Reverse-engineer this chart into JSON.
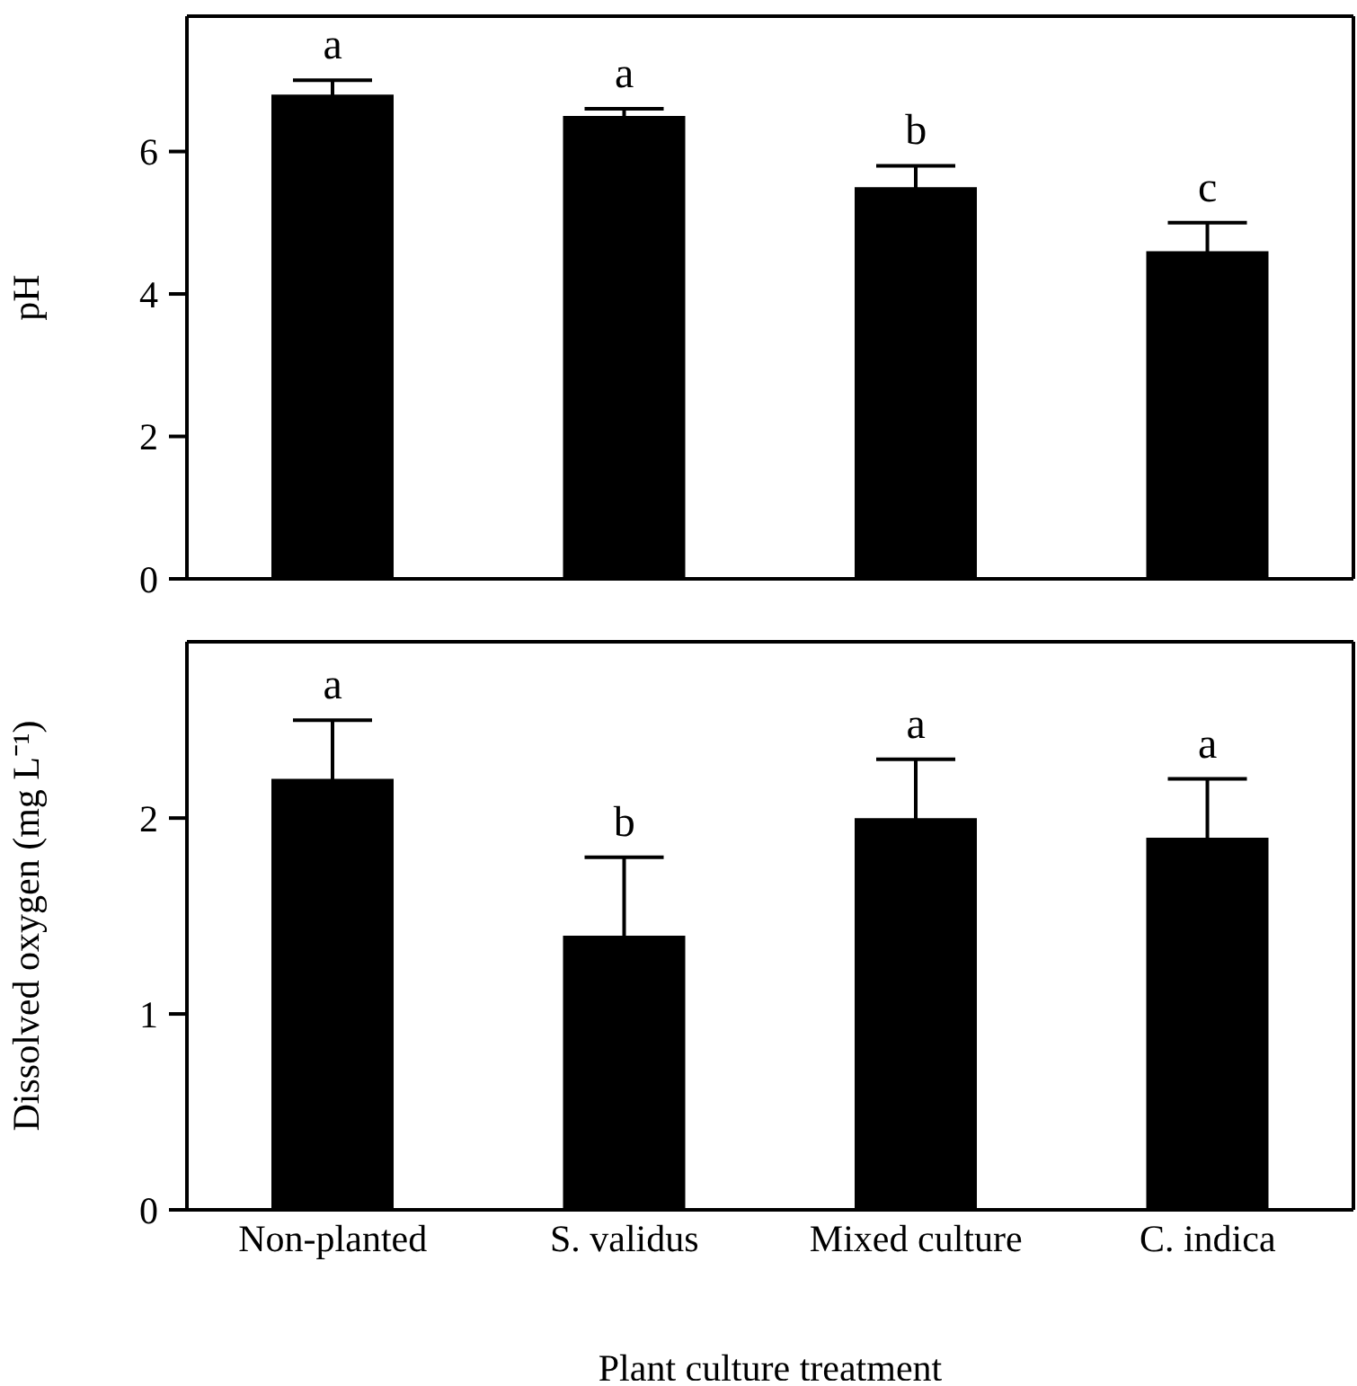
{
  "chart_data": [
    {
      "type": "bar",
      "ylabel": "pH",
      "categories": [
        null,
        null,
        null,
        null
      ],
      "values": [
        6.8,
        6.5,
        5.5,
        4.6
      ],
      "errors": [
        0.2,
        0.1,
        0.3,
        0.4
      ],
      "color": "#000000",
      "ylim": [
        0,
        7.9
      ],
      "yticks": [
        0,
        2,
        4,
        6
      ],
      "grid": false,
      "tick_labels": "y",
      "annotations": [
        "a",
        "a",
        "b",
        "c"
      ]
    },
    {
      "type": "bar",
      "ylabel": "Dissolved oxygen (mg L⁻¹)",
      "xlabel": "Plant culture treatment",
      "categories": [
        "Non-planted",
        "S. validus",
        "Mixed culture",
        "C. indica"
      ],
      "values": [
        2.2,
        1.4,
        2.0,
        1.9
      ],
      "errors": [
        0.3,
        0.4,
        0.3,
        0.3
      ],
      "color": "#000000",
      "ylim": [
        0,
        2.9
      ],
      "yticks": [
        0,
        1,
        2
      ],
      "grid": false,
      "annotations": [
        "a",
        "b",
        "a",
        "a"
      ]
    }
  ]
}
